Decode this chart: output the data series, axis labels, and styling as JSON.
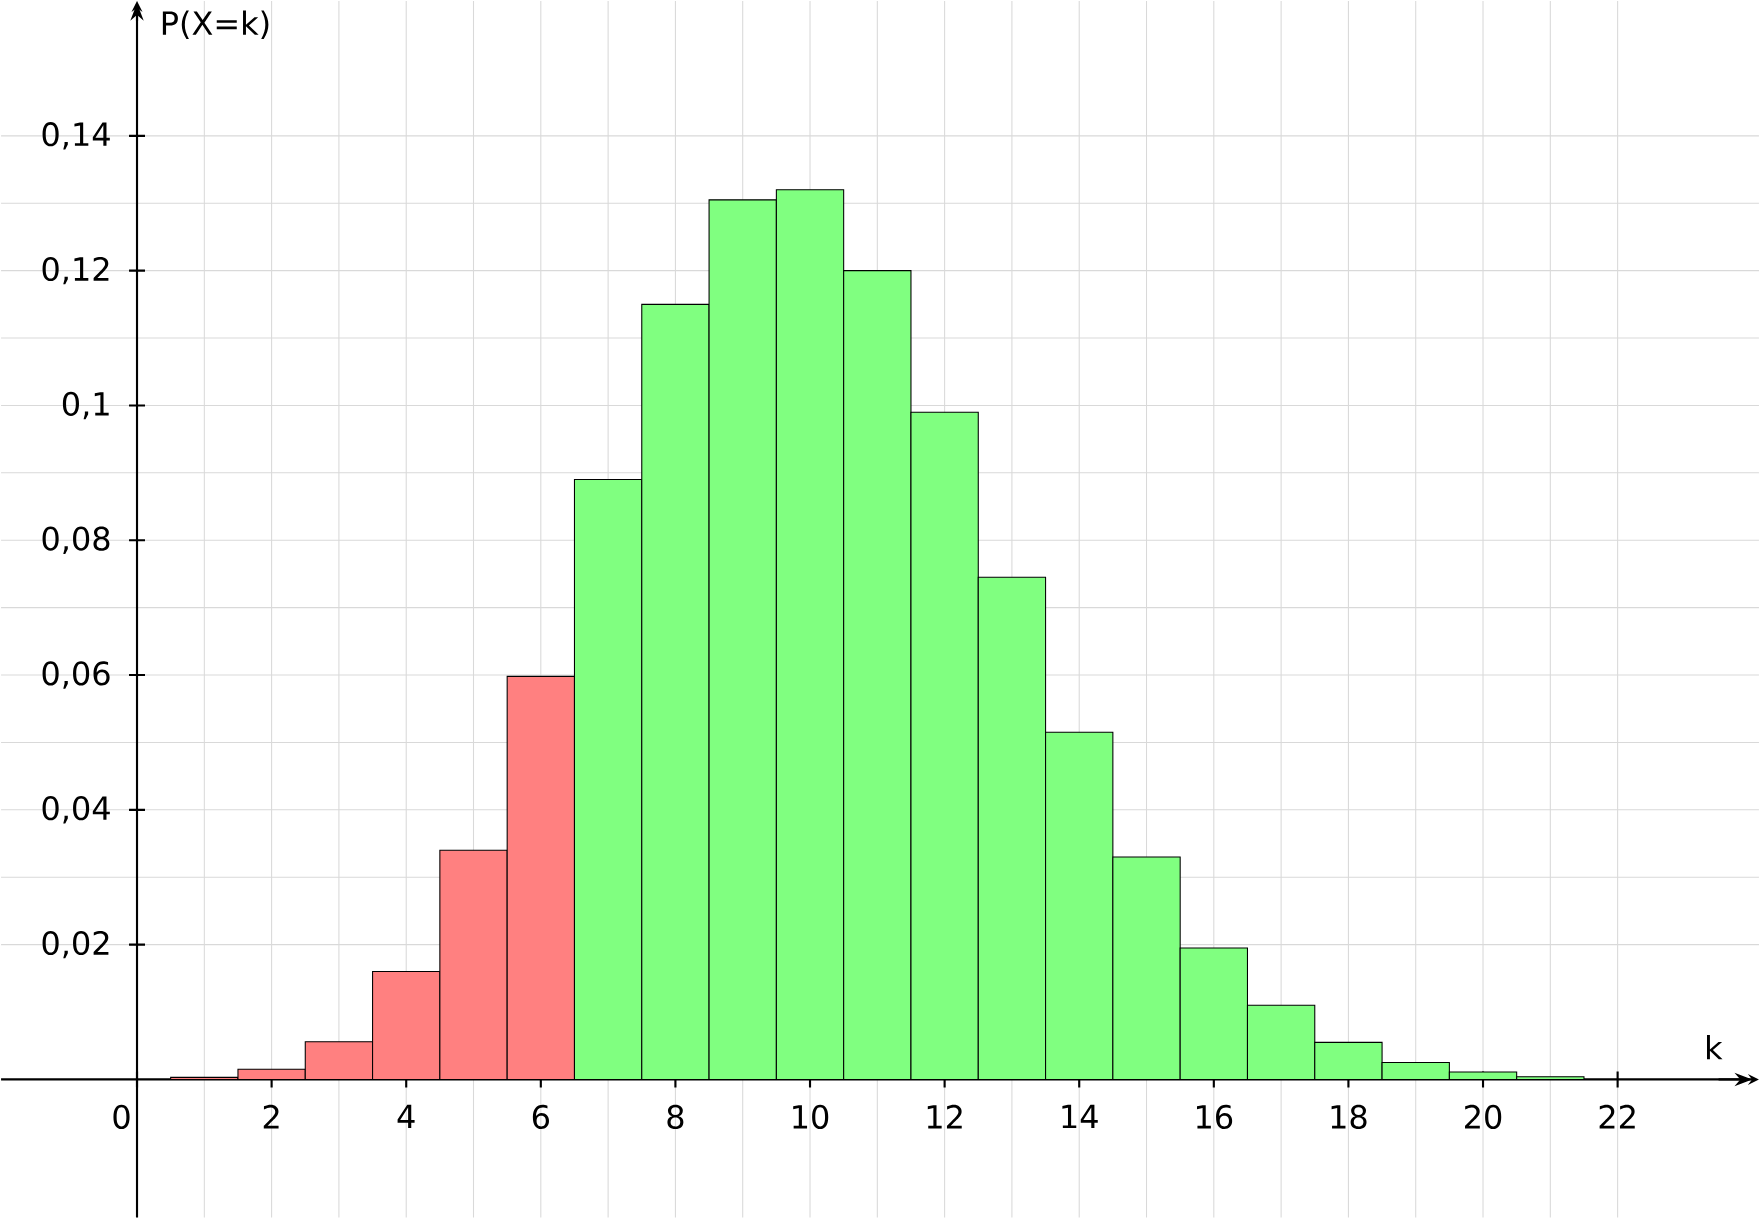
{
  "chart_data": {
    "type": "bar",
    "xlabel": "k",
    "ylabel": "P(X=k)",
    "x": [
      1,
      2,
      3,
      4,
      5,
      6,
      7,
      8,
      9,
      10,
      11,
      12,
      13,
      14,
      15,
      16,
      17,
      18,
      19,
      20,
      21
    ],
    "values": [
      0.0003,
      0.0015,
      0.0056,
      0.016,
      0.034,
      0.0598,
      0.089,
      0.115,
      0.1305,
      0.132,
      0.12,
      0.099,
      0.0745,
      0.0515,
      0.033,
      0.0195,
      0.011,
      0.0055,
      0.0025,
      0.0011,
      0.0004
    ],
    "colors": [
      "#ff8080",
      "#ff8080",
      "#ff8080",
      "#ff8080",
      "#ff8080",
      "#ff8080",
      "#80ff80",
      "#80ff80",
      "#80ff80",
      "#80ff80",
      "#80ff80",
      "#80ff80",
      "#80ff80",
      "#80ff80",
      "#80ff80",
      "#80ff80",
      "#80ff80",
      "#80ff80",
      "#80ff80",
      "#80ff80",
      "#80ff80"
    ],
    "xlim": [
      -2.02,
      24.1
    ],
    "ylim": [
      -0.0205,
      0.16
    ],
    "xticks": [
      0,
      2,
      4,
      6,
      8,
      10,
      12,
      14,
      16,
      18,
      20,
      22
    ],
    "yticks": [
      {
        "value": 0.02,
        "label": "0,02"
      },
      {
        "value": 0.04,
        "label": "0,04"
      },
      {
        "value": 0.06,
        "label": "0,06"
      },
      {
        "value": 0.08,
        "label": "0,08"
      },
      {
        "value": 0.1,
        "label": "0,1"
      },
      {
        "value": 0.12,
        "label": "0,12"
      },
      {
        "value": 0.14,
        "label": "0,14"
      }
    ],
    "grid": true
  }
}
